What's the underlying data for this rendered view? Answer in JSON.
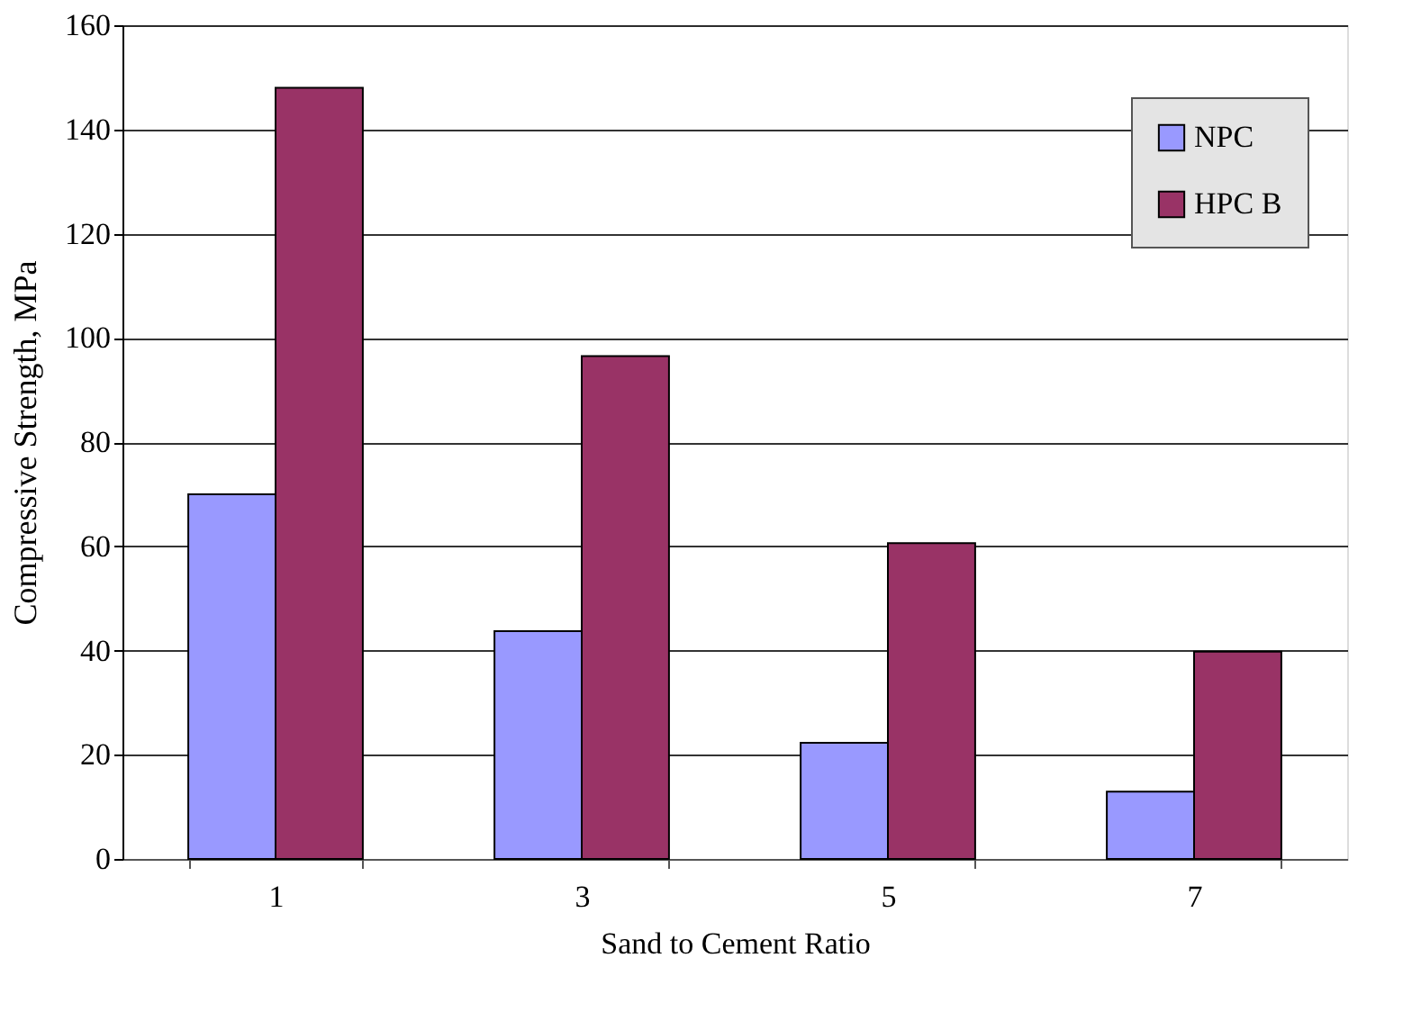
{
  "chart_data": {
    "type": "bar",
    "xlabel": "Sand to Cement Ratio",
    "ylabel": "Compressive Strength, MPa",
    "categories": [
      "1",
      "3",
      "5",
      "7"
    ],
    "series": [
      {
        "name": "NPC",
        "color": "#9999ff",
        "values": [
          70,
          43.7,
          22.3,
          12.9
        ]
      },
      {
        "name": "HPC B",
        "color": "#993366",
        "values": [
          148,
          96.5,
          60.6,
          39.8
        ]
      }
    ],
    "ylim": [
      0,
      160
    ],
    "yticks": [
      0,
      20,
      40,
      60,
      80,
      100,
      120,
      140,
      160
    ],
    "grid": "y",
    "legend": "top right"
  }
}
